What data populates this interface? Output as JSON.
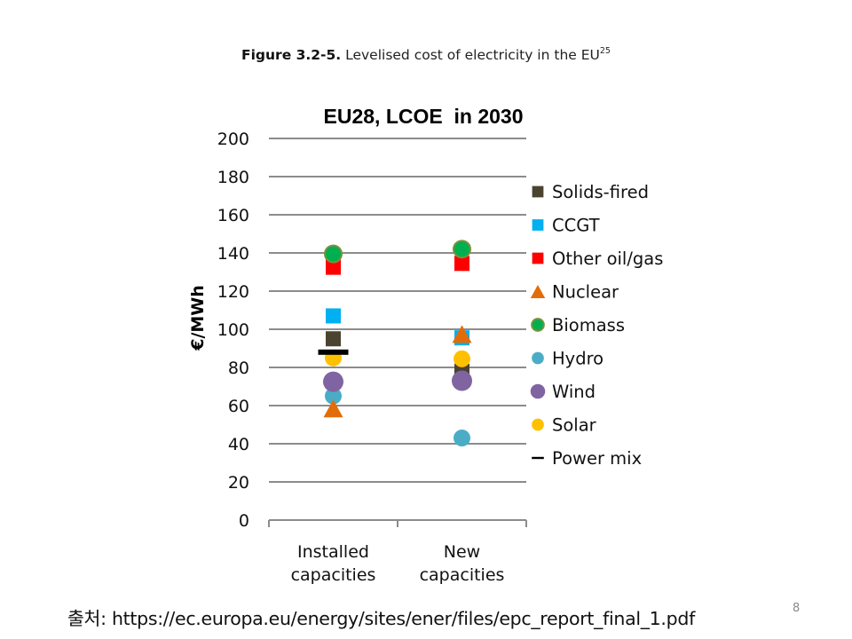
{
  "caption": {
    "label": "Figure 3.2-5.",
    "text": " Levelised cost of electricity in the EU",
    "footnote": "25"
  },
  "chart_data": {
    "type": "scatter",
    "title": "EU28, LCOE  in 2030",
    "xlabel": "",
    "ylabel": "€/MWh",
    "ylim": [
      0,
      200
    ],
    "yticks": [
      0,
      20,
      40,
      60,
      80,
      100,
      120,
      140,
      160,
      180,
      200
    ],
    "grid": true,
    "legend_position": "right",
    "categories": [
      [
        "Installed",
        "capacities"
      ],
      [
        "New",
        "capacities"
      ]
    ],
    "series": [
      {
        "name": "Solids-fired",
        "marker": "square",
        "color": "#4a4330",
        "values": [
          95,
          78
        ]
      },
      {
        "name": "CCGT",
        "marker": "square",
        "color": "#00b0f0",
        "values": [
          107,
          95.5
        ]
      },
      {
        "name": "Other oil/gas",
        "marker": "square",
        "color": "#ff0000",
        "values": [
          132.5,
          134.5
        ]
      },
      {
        "name": "Nuclear",
        "marker": "triangle",
        "color": "#e36c0a",
        "values": [
          58.5,
          97.5
        ]
      },
      {
        "name": "Biomass",
        "marker": "circle",
        "color": "#00b050",
        "edge": "#77933c",
        "values": [
          139.5,
          142
        ]
      },
      {
        "name": "Hydro",
        "marker": "circle",
        "color": "#4bacc6",
        "values": [
          65,
          43
        ]
      },
      {
        "name": "Wind",
        "marker": "circle",
        "color": "#8064a2",
        "values": [
          72.5,
          73
        ]
      },
      {
        "name": "Solar",
        "marker": "circle",
        "color": "#ffc000",
        "values": [
          85,
          84.5
        ]
      },
      {
        "name": "Power mix",
        "marker": "dash",
        "color": "#000000",
        "values": [
          88,
          null
        ]
      }
    ]
  },
  "footer": {
    "source": "출처: https://ec.europa.eu/energy/sites/ener/files/epc_report_final_1.pdf",
    "page_number": "8"
  }
}
